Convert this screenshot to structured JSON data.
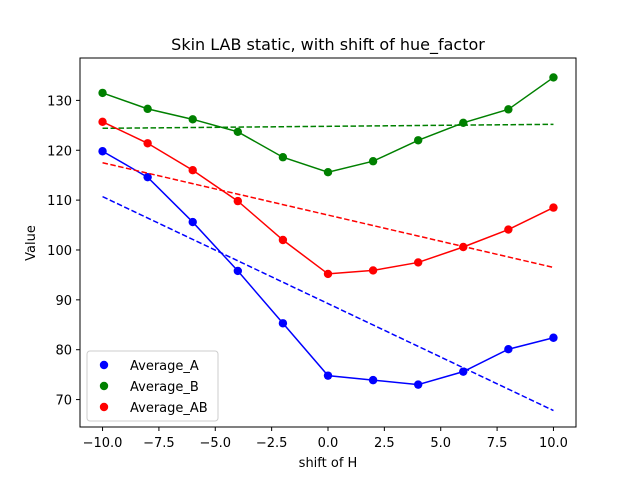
{
  "chart_data": {
    "type": "line",
    "title": "Skin LAB static, with shift of hue_factor",
    "xlabel": "shift of H",
    "ylabel": "Value",
    "xlim": [
      -11,
      11
    ],
    "ylim": [
      64.5,
      138.5
    ],
    "x": [
      -10,
      -8,
      -6,
      -4,
      -2,
      0,
      2,
      4,
      6,
      8,
      10
    ],
    "x_ticks": [
      -10,
      -7.5,
      -5,
      -2.5,
      0,
      2.5,
      5,
      7.5,
      10
    ],
    "x_tick_labels": [
      "−10.0",
      "−7.5",
      "−5.0",
      "−2.5",
      "0.0",
      "2.5",
      "5.0",
      "7.5",
      "10.0"
    ],
    "y_ticks": [
      70,
      80,
      90,
      100,
      110,
      120,
      130
    ],
    "y_tick_labels": [
      "70",
      "80",
      "90",
      "100",
      "110",
      "120",
      "130"
    ],
    "legend_position": "lower-left",
    "series": [
      {
        "name": "Average_A",
        "color": "#0000ff",
        "values": [
          119.8,
          114.6,
          105.6,
          95.8,
          85.3,
          74.8,
          73.9,
          73.0,
          75.6,
          80.1,
          82.4
        ],
        "trend": [
          110.7,
          67.8
        ]
      },
      {
        "name": "Average_B",
        "color": "#008000",
        "values": [
          131.5,
          128.3,
          126.2,
          123.7,
          118.6,
          115.6,
          117.8,
          122.0,
          125.5,
          128.2,
          134.6
        ],
        "trend": [
          124.4,
          125.2
        ]
      },
      {
        "name": "Average_AB",
        "color": "#ff0000",
        "values": [
          125.7,
          121.4,
          116.0,
          109.8,
          102.0,
          95.2,
          95.9,
          97.5,
          100.6,
          104.1,
          108.5
        ],
        "trend": [
          117.5,
          96.5
        ]
      }
    ]
  }
}
